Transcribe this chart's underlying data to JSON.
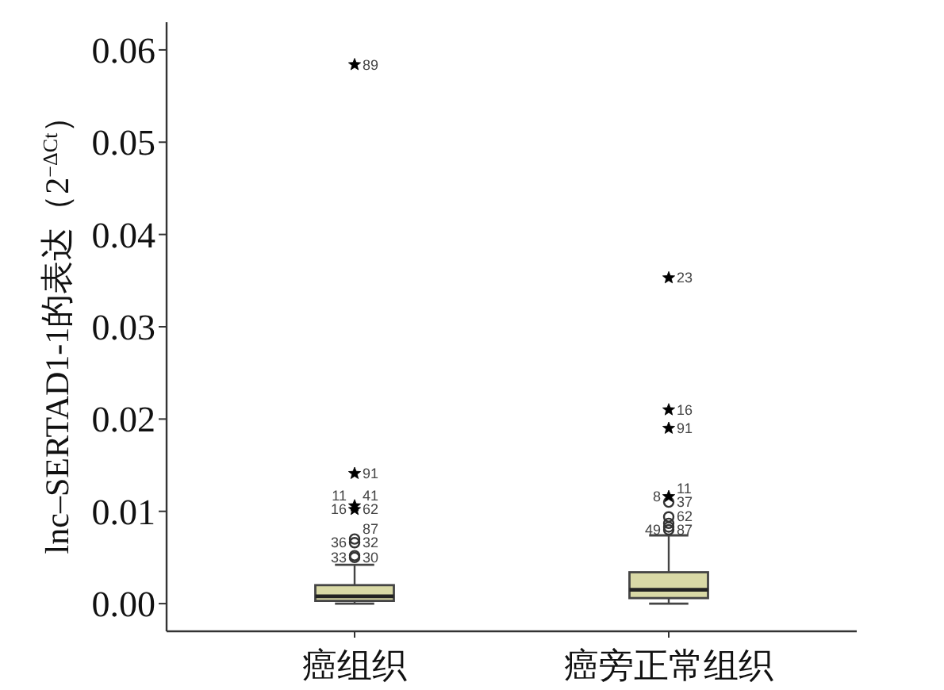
{
  "chart_data": {
    "type": "box",
    "categories": [
      "癌组织",
      "癌旁正常组织"
    ],
    "ylabel": "lnc–SERTAD1-1的表达（2$^{−ΔCt}$）",
    "ylim": [
      -0.003,
      0.063
    ],
    "yticks": [
      {
        "value": 0,
        "label": "0.00"
      },
      0.01,
      0.02,
      0.03,
      0.04,
      0.05,
      0.06
    ],
    "series": [
      {
        "color": "#d9d9a6",
        "boxes": [
          {
            "low": 0,
            "q1": 0.0003,
            "median": 0.0008,
            "q3": 0.002,
            "high": 0.0042
          },
          {
            "low": 0,
            "q1": 0.0006,
            "median": 0.0015,
            "q3": 0.0034,
            "high": 0.0074
          }
        ]
      },
      {
        "type": "scatter",
        "marker": "circle",
        "color": "#333333",
        "x": [
          "癌组织",
          "癌组织",
          "癌组织",
          "癌组织",
          "癌旁正常组织",
          "癌旁正常组织",
          "癌旁正常组织",
          "癌旁正常组织",
          "癌旁正常组织"
        ],
        "values": [
          0.005,
          0.0052,
          0.0066,
          0.007,
          0.008,
          0.0083,
          0.0087,
          0.0094,
          0.011
        ]
      },
      {
        "type": "scatter",
        "marker": "star",
        "color": "#000000",
        "x": [
          "癌组织",
          "癌组织",
          "癌组织",
          "癌组织",
          "癌旁正常组织",
          "癌旁正常组织",
          "癌旁正常组织",
          "癌旁正常组织"
        ],
        "values": [
          0.0584,
          0.0141,
          0.0106,
          0.0102,
          0.0353,
          0.021,
          0.019,
          0.0116
        ]
      }
    ],
    "annotations": [
      {
        "text": "33",
        "x": "癌组织",
        "y": 0.005
      },
      {
        "text": "30",
        "x": "癌组织",
        "y": 0.005
      },
      {
        "text": "36",
        "x": "癌组织",
        "y": 0.0066
      },
      {
        "text": "32",
        "x": "癌组织",
        "y": 0.0066
      },
      {
        "text": "87",
        "x": "癌组织",
        "y": 0.007
      },
      {
        "text": "16",
        "x": "癌组织",
        "y": 0.0102
      },
      {
        "text": "62",
        "x": "癌组织",
        "y": 0.0102
      },
      {
        "text": "11",
        "x": "癌组织",
        "y": 0.0106
      },
      {
        "text": "41",
        "x": "癌组织",
        "y": 0.0106
      },
      {
        "text": "91",
        "x": "癌组织",
        "y": 0.0141
      },
      {
        "text": "89",
        "x": "癌组织",
        "y": 0.0584
      },
      {
        "text": "49",
        "x": "癌旁正常组织",
        "y": 0.008
      },
      {
        "text": "87",
        "x": "癌旁正常组织",
        "y": 0.008
      },
      {
        "text": "62",
        "x": "癌旁正常组织",
        "y": 0.0094
      },
      {
        "text": "37",
        "x": "癌旁正常组织",
        "y": 0.011
      },
      {
        "text": "8",
        "x": "癌旁正常组织",
        "y": 0.0116
      },
      {
        "text": "11",
        "x": "癌旁正常组织",
        "y": 0.0116
      },
      {
        "text": "91",
        "x": "癌旁正常组织",
        "y": 0.019
      },
      {
        "text": "16",
        "x": "癌旁正常组织",
        "y": 0.021
      },
      {
        "text": "23",
        "x": "癌旁正常组织",
        "y": 0.0353
      }
    ]
  }
}
